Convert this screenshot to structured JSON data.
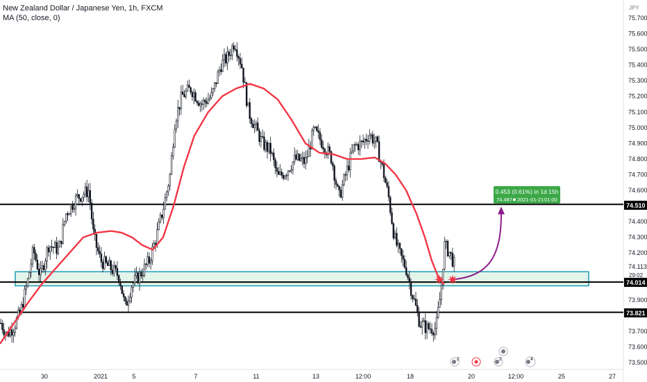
{
  "legend": {
    "symbol_line": "New Zealand Dollar / Japanese Yen, 1h, FXCM",
    "ma_line": "MA (50, close, 0)"
  },
  "axis": {
    "currency": "JPY",
    "y_ticks": [
      "75.700",
      "75.600",
      "75.500",
      "75.400",
      "75.300",
      "75.200",
      "75.100",
      "75.000",
      "74.900",
      "74.800",
      "74.700",
      "74.600",
      "74.400",
      "74.300",
      "74.200",
      "73.900",
      "73.700",
      "73.600",
      "73.500"
    ],
    "x_ticks": [
      "30",
      "2021",
      "5",
      "7",
      "11",
      "13",
      "12:00",
      "18",
      "20",
      "12:00",
      "25",
      "27"
    ]
  },
  "price_labels": {
    "resistance": "74.510",
    "current": "74.113",
    "countdown": "29:02",
    "support_zone": "74.014",
    "support_low": "73.821"
  },
  "measure_box": {
    "line1": "0.453 (0.61%) in 1d 15h",
    "price": "74.487",
    "date": "2021-01-21",
    "time": "01:00"
  },
  "events": [
    "2",
    "2",
    "4"
  ],
  "colors": {
    "ma": "#f23645",
    "candle": "#131722",
    "zone_fill": "#d1ecdc",
    "zone_border": "#1e9bb5",
    "measure_bg": "#3ca847",
    "arrow": "#8c1a8c",
    "star": "#f23645"
  },
  "chart_data": {
    "type": "candlestick",
    "title": "New Zealand Dollar / Japanese Yen, 1h, FXCM",
    "ylim": [
      73.47,
      75.78
    ],
    "ylabel": "JPY",
    "x_ticks": [
      "30",
      "2021",
      "5",
      "7",
      "11",
      "13",
      "12:00",
      "18",
      "20",
      "12:00",
      "25",
      "27"
    ],
    "price_path": [
      [
        0,
        73.76
      ],
      [
        10,
        73.68
      ],
      [
        20,
        73.73
      ],
      [
        30,
        73.83
      ],
      [
        40,
        74.02
      ],
      [
        48,
        74.22
      ],
      [
        58,
        74.05
      ],
      [
        70,
        74.25
      ],
      [
        85,
        74.22
      ],
      [
        95,
        74.45
      ],
      [
        110,
        74.55
      ],
      [
        128,
        74.6
      ],
      [
        135,
        74.3
      ],
      [
        145,
        74.15
      ],
      [
        160,
        74.1
      ],
      [
        172,
        74.05
      ],
      [
        180,
        73.85
      ],
      [
        190,
        74.0
      ],
      [
        200,
        74.05
      ],
      [
        215,
        74.15
      ],
      [
        225,
        74.3
      ],
      [
        235,
        74.48
      ],
      [
        245,
        74.7
      ],
      [
        252,
        75.05
      ],
      [
        262,
        75.2
      ],
      [
        275,
        75.25
      ],
      [
        290,
        75.15
      ],
      [
        305,
        75.2
      ],
      [
        318,
        75.4
      ],
      [
        328,
        75.45
      ],
      [
        338,
        75.55
      ],
      [
        348,
        75.4
      ],
      [
        358,
        75.1
      ],
      [
        368,
        75.0
      ],
      [
        378,
        74.9
      ],
      [
        390,
        74.85
      ],
      [
        400,
        74.68
      ],
      [
        412,
        74.72
      ],
      [
        425,
        74.8
      ],
      [
        440,
        74.78
      ],
      [
        452,
        74.98
      ],
      [
        465,
        74.9
      ],
      [
        478,
        74.8
      ],
      [
        488,
        74.55
      ],
      [
        498,
        74.7
      ],
      [
        510,
        74.88
      ],
      [
        522,
        74.9
      ],
      [
        532,
        74.96
      ],
      [
        542,
        74.9
      ],
      [
        552,
        74.72
      ],
      [
        560,
        74.55
      ],
      [
        568,
        74.3
      ],
      [
        575,
        74.2
      ],
      [
        585,
        74.1
      ],
      [
        595,
        73.92
      ],
      [
        605,
        73.75
      ],
      [
        615,
        73.72
      ],
      [
        628,
        73.72
      ],
      [
        635,
        73.95
      ],
      [
        640,
        74.25
      ],
      [
        648,
        74.2
      ],
      [
        655,
        74.12
      ]
    ],
    "ma_50": [
      [
        0,
        73.62
      ],
      [
        20,
        73.75
      ],
      [
        40,
        73.88
      ],
      [
        60,
        74.0
      ],
      [
        80,
        74.1
      ],
      [
        100,
        74.2
      ],
      [
        120,
        74.3
      ],
      [
        140,
        74.33
      ],
      [
        160,
        74.34
      ],
      [
        175,
        74.33
      ],
      [
        190,
        74.3
      ],
      [
        205,
        74.25
      ],
      [
        220,
        74.22
      ],
      [
        235,
        74.3
      ],
      [
        250,
        74.5
      ],
      [
        265,
        74.75
      ],
      [
        280,
        74.95
      ],
      [
        300,
        75.1
      ],
      [
        320,
        75.2
      ],
      [
        340,
        75.25
      ],
      [
        360,
        75.28
      ],
      [
        380,
        75.25
      ],
      [
        400,
        75.18
      ],
      [
        420,
        75.05
      ],
      [
        440,
        74.9
      ],
      [
        460,
        74.84
      ],
      [
        480,
        74.83
      ],
      [
        500,
        74.8
      ],
      [
        520,
        74.8
      ],
      [
        540,
        74.81
      ],
      [
        555,
        74.77
      ],
      [
        570,
        74.7
      ],
      [
        585,
        74.6
      ],
      [
        600,
        74.45
      ],
      [
        612,
        74.3
      ],
      [
        622,
        74.15
      ],
      [
        632,
        74.04
      ],
      [
        640,
        74.0
      ]
    ],
    "levels": [
      74.51,
      73.821
    ],
    "support_zone": [
      73.99,
      74.08
    ],
    "current_price": 74.113,
    "projection": {
      "from": [
        652,
        74.03
      ],
      "to": [
        722,
        74.487
      ]
    },
    "measure": {
      "change": 0.453,
      "percent": 0.61,
      "duration": "1d 15h",
      "target": 74.487
    }
  }
}
